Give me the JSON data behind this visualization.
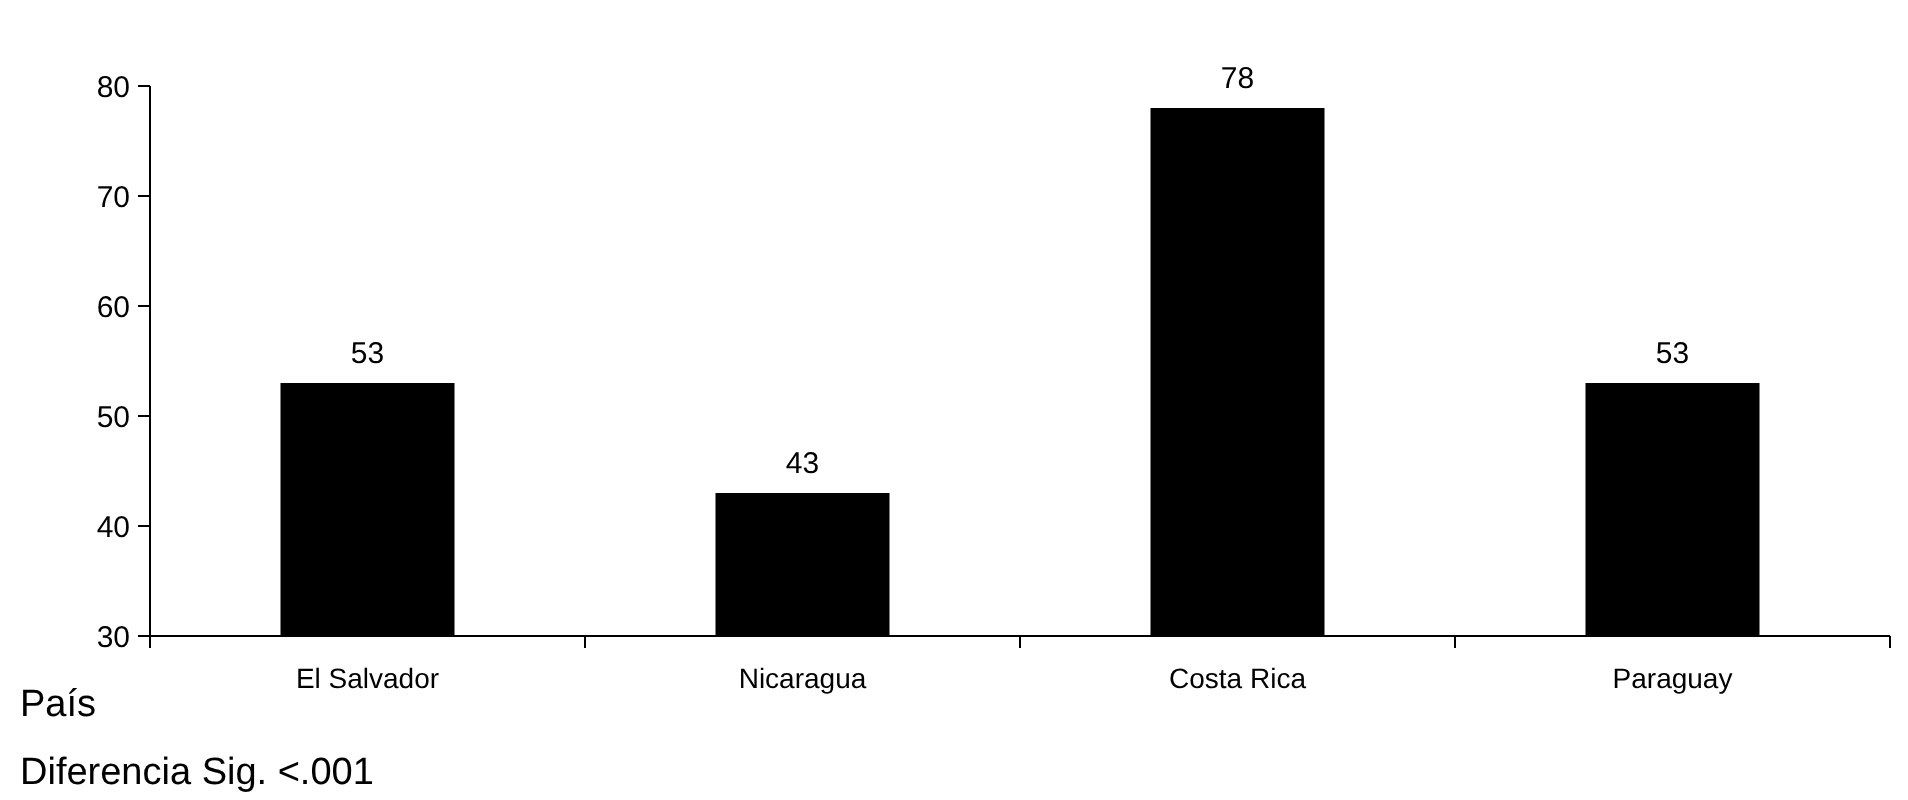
{
  "chart_data": {
    "type": "bar",
    "xlabel": "País",
    "categories": [
      "El Salvador",
      "Nicaragua",
      "Costa Rica",
      "Paraguay"
    ],
    "values": [
      53,
      43,
      78,
      53
    ],
    "color": "#000000",
    "ylim": [
      30,
      80
    ],
    "yticks": [
      30,
      40,
      50,
      60,
      70,
      80
    ],
    "data_labels": true,
    "annotations": [
      "Diferencia Sig. <.001"
    ]
  }
}
